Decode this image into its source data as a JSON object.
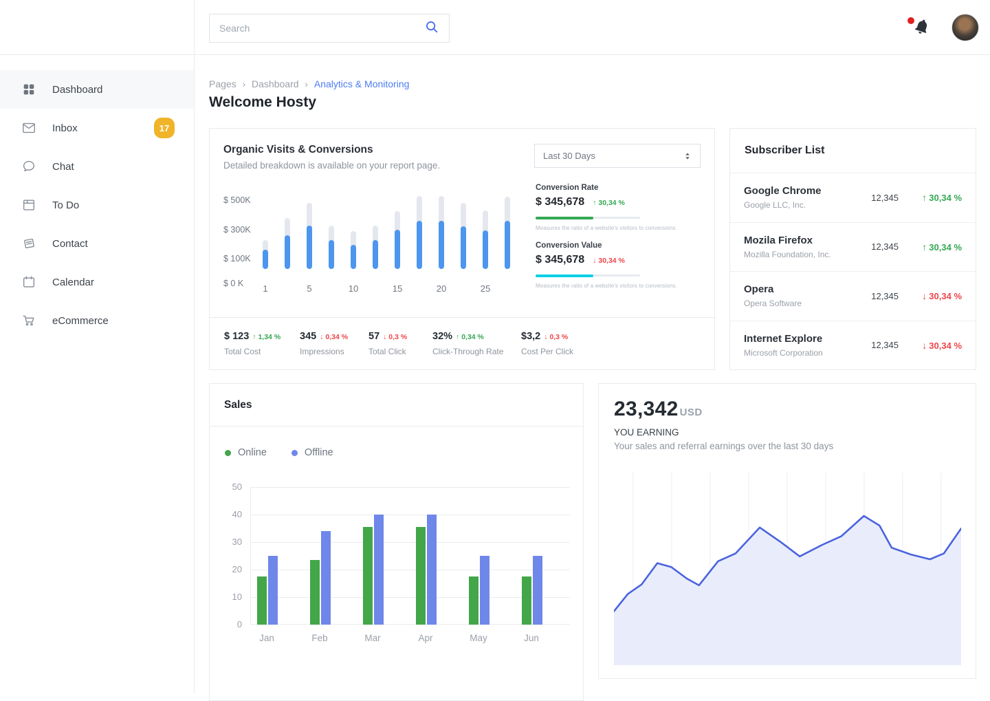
{
  "colors": {
    "up": "#34a853",
    "down": "#ef4549",
    "accent_link": "#4c7cf3",
    "badge": "#f0b429",
    "organic_bar_total": "#e4e8ee",
    "organic_bar_visits": "#4d96ee",
    "rate_bar": "#34a853",
    "value_bar": "#0bd0e8",
    "sales_online": "#43a649",
    "sales_offline": "#6e87e9",
    "earning_line": "#4a63de",
    "earning_fill": "#e9edfb"
  },
  "sidebar": {
    "items": [
      {
        "label": "Dashboard",
        "icon": "grid-icon",
        "active": true
      },
      {
        "label": "Inbox",
        "icon": "envelope-icon",
        "badge": "17"
      },
      {
        "label": "Chat",
        "icon": "chat-bubble-icon"
      },
      {
        "label": "To Do",
        "icon": "todo-panel-icon"
      },
      {
        "label": "Contact",
        "icon": "contact-book-icon"
      },
      {
        "label": "Calendar",
        "icon": "calendar-icon"
      },
      {
        "label": "eCommerce",
        "icon": "cart-icon"
      }
    ]
  },
  "header": {
    "search_placeholder": "Search"
  },
  "breadcrumb": {
    "items": [
      "Pages",
      "Dashboard",
      "Analytics & Monitoring"
    ]
  },
  "page": {
    "title": "Welcome Hosty"
  },
  "organic": {
    "title": "Organic Visits & Conversions",
    "subtitle": "Detailed breakdown is available on your report page.",
    "period": "Last 30 Days",
    "metrics": [
      {
        "label": "Conversion Rate",
        "value": "$ 345,678",
        "delta": "30,34 %",
        "direction": "up",
        "caption": "Measures the ratio of a website's visitors to conversions.",
        "bar_color_key": "rate_bar",
        "bar_pct": 55
      },
      {
        "label": "Conversion Value",
        "value": "$ 345,678",
        "delta": "30,34 %",
        "direction": "down",
        "caption": "Measures the ratio of a website's visitors to conversions.",
        "bar_color_key": "value_bar",
        "bar_pct": 55
      }
    ],
    "stats": [
      {
        "value": "$ 123",
        "delta": "1,34 %",
        "direction": "up",
        "label": "Total Cost"
      },
      {
        "value": "345",
        "delta": "0,34 %",
        "direction": "down",
        "label": "Impressions"
      },
      {
        "value": "57",
        "delta": "0,3 %",
        "direction": "down",
        "label": "Total Click"
      },
      {
        "value": "32%",
        "delta": "0,34 %",
        "direction": "up",
        "label": "Click-Through Rate"
      },
      {
        "value": "$3,2",
        "delta": "0,3 %",
        "direction": "down",
        "label": "Cost Per Click"
      }
    ]
  },
  "subscribers": {
    "title": "Subscriber List",
    "rows": [
      {
        "name": "Google Chrome",
        "company": "Google LLC, Inc.",
        "count": "12,345",
        "delta": "30,34 %",
        "direction": "up"
      },
      {
        "name": "Mozila Firefox",
        "company": "Mozilla Foundation, Inc.",
        "count": "12,345",
        "delta": "30,34 %",
        "direction": "up"
      },
      {
        "name": "Opera",
        "company": "Opera Software",
        "count": "12,345",
        "delta": "30,34 %",
        "direction": "down"
      },
      {
        "name": "Internet Explore",
        "company": "Microsoft Corporation",
        "count": "12,345",
        "delta": "30,34 %",
        "direction": "down"
      }
    ]
  },
  "sales": {
    "title": "Sales",
    "legend": [
      {
        "label": "Online",
        "color_key": "sales_online"
      },
      {
        "label": "Offline",
        "color_key": "sales_offline"
      }
    ]
  },
  "earning": {
    "amount": "23,342",
    "currency": "USD",
    "label": "YOU EARNING",
    "subtitle": "Your sales and referral earnings over the last 30 days"
  },
  "chart_data": [
    {
      "id": "organic-visits",
      "type": "bar",
      "title": "Organic Visits & Conversions",
      "ylim": [
        0,
        520
      ],
      "yticks": [
        "$ 500K",
        "$ 300K",
        "$ 100K",
        "$ 0 K"
      ],
      "ytick_values": [
        500,
        300,
        100,
        0
      ],
      "x_labels": {
        "0": "1",
        "2": "5",
        "4": "10",
        "6": "15",
        "8": "20",
        "10": "25"
      },
      "series": [
        {
          "name": "Total",
          "color_key": "organic_bar_total",
          "values": [
            200,
            350,
            455,
            300,
            260,
            300,
            400,
            505,
            505,
            455,
            405,
            500
          ]
        },
        {
          "name": "Visits",
          "color_key": "organic_bar_visits",
          "values": [
            135,
            235,
            300,
            200,
            165,
            200,
            270,
            335,
            335,
            295,
            265,
            335
          ]
        }
      ]
    },
    {
      "id": "sales-by-month",
      "type": "bar",
      "title": "Sales",
      "categories": [
        "Jan",
        "Feb",
        "Mar",
        "Apr",
        "May",
        "Jun"
      ],
      "ylim": [
        0,
        50
      ],
      "yticks": [
        0,
        10,
        20,
        30,
        40,
        50
      ],
      "grid": true,
      "legend_position": "top-left",
      "series": [
        {
          "name": "Online",
          "color_key": "sales_online",
          "values": [
            17.5,
            23.5,
            35.5,
            35.5,
            17.5,
            17.5
          ]
        },
        {
          "name": "Offline",
          "color_key": "sales_offline",
          "values": [
            25,
            34,
            40,
            40,
            25,
            25
          ]
        }
      ]
    },
    {
      "id": "earnings-trend",
      "type": "area",
      "title": "YOU EARNING",
      "ylim": [
        0,
        100
      ],
      "gridlines_vertical": 9,
      "points": [
        [
          0,
          28
        ],
        [
          4,
          37
        ],
        [
          8,
          42
        ],
        [
          12.5,
          53
        ],
        [
          16.5,
          51
        ],
        [
          21,
          45
        ],
        [
          24.5,
          41.5
        ],
        [
          30,
          54
        ],
        [
          35,
          58
        ],
        [
          42,
          71.5
        ],
        [
          48,
          64
        ],
        [
          53.5,
          56.5
        ],
        [
          60,
          62.5
        ],
        [
          65.5,
          67
        ],
        [
          72,
          77.5
        ],
        [
          76.5,
          72.5
        ],
        [
          80,
          61
        ],
        [
          85.5,
          57.5
        ],
        [
          91,
          55
        ],
        [
          95,
          58
        ],
        [
          100,
          71
        ]
      ]
    }
  ]
}
